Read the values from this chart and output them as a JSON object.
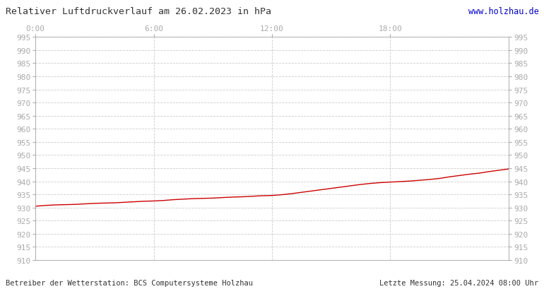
{
  "title": "Relativer Luftdruckverlauf am 26.02.2023 in hPa",
  "website": "www.holzhau.de",
  "footer_left": "Betreiber der Wetterstation: BCS Computersysteme Holzhau",
  "footer_right": "Letzte Messung: 25.04.2024 08:00 Uhr",
  "line_color": "#cc0000",
  "background_color": "#ffffff",
  "plot_bg_color": "#ffffff",
  "grid_color": "#cccccc",
  "border_color": "#aaaaaa",
  "ylim": [
    910,
    995
  ],
  "xlim": [
    0,
    1440
  ],
  "ytick_step": 5,
  "xtick_positions": [
    0,
    360,
    720,
    1080
  ],
  "xtick_labels": [
    "0:00",
    "6:00",
    "12:00",
    "18:00"
  ],
  "pressure_data": [
    [
      0,
      930.5
    ],
    [
      30,
      930.8
    ],
    [
      60,
      931.0
    ],
    [
      90,
      931.1
    ],
    [
      120,
      931.2
    ],
    [
      150,
      931.4
    ],
    [
      180,
      931.6
    ],
    [
      210,
      931.7
    ],
    [
      240,
      931.8
    ],
    [
      270,
      932.0
    ],
    [
      300,
      932.2
    ],
    [
      330,
      932.4
    ],
    [
      360,
      932.5
    ],
    [
      390,
      932.7
    ],
    [
      420,
      933.0
    ],
    [
      450,
      933.2
    ],
    [
      480,
      933.4
    ],
    [
      510,
      933.5
    ],
    [
      540,
      933.6
    ],
    [
      570,
      933.8
    ],
    [
      600,
      934.0
    ],
    [
      630,
      934.1
    ],
    [
      660,
      934.3
    ],
    [
      690,
      934.5
    ],
    [
      720,
      934.6
    ],
    [
      750,
      934.9
    ],
    [
      780,
      935.3
    ],
    [
      810,
      935.8
    ],
    [
      840,
      936.3
    ],
    [
      870,
      936.8
    ],
    [
      900,
      937.3
    ],
    [
      930,
      937.8
    ],
    [
      960,
      938.3
    ],
    [
      990,
      938.8
    ],
    [
      1020,
      939.2
    ],
    [
      1050,
      939.5
    ],
    [
      1080,
      939.7
    ],
    [
      1110,
      939.9
    ],
    [
      1140,
      940.1
    ],
    [
      1170,
      940.4
    ],
    [
      1200,
      940.7
    ],
    [
      1230,
      941.1
    ],
    [
      1260,
      941.7
    ],
    [
      1290,
      942.2
    ],
    [
      1320,
      942.7
    ],
    [
      1350,
      943.1
    ],
    [
      1380,
      943.7
    ],
    [
      1410,
      944.2
    ],
    [
      1440,
      944.7
    ]
  ],
  "title_fontsize": 9.5,
  "tick_fontsize": 8,
  "footer_fontsize": 7.5,
  "website_fontsize": 8.5,
  "title_color": "#333333",
  "tick_color": "#aaaaaa",
  "text_color": "#333333",
  "website_color": "#0000cc"
}
